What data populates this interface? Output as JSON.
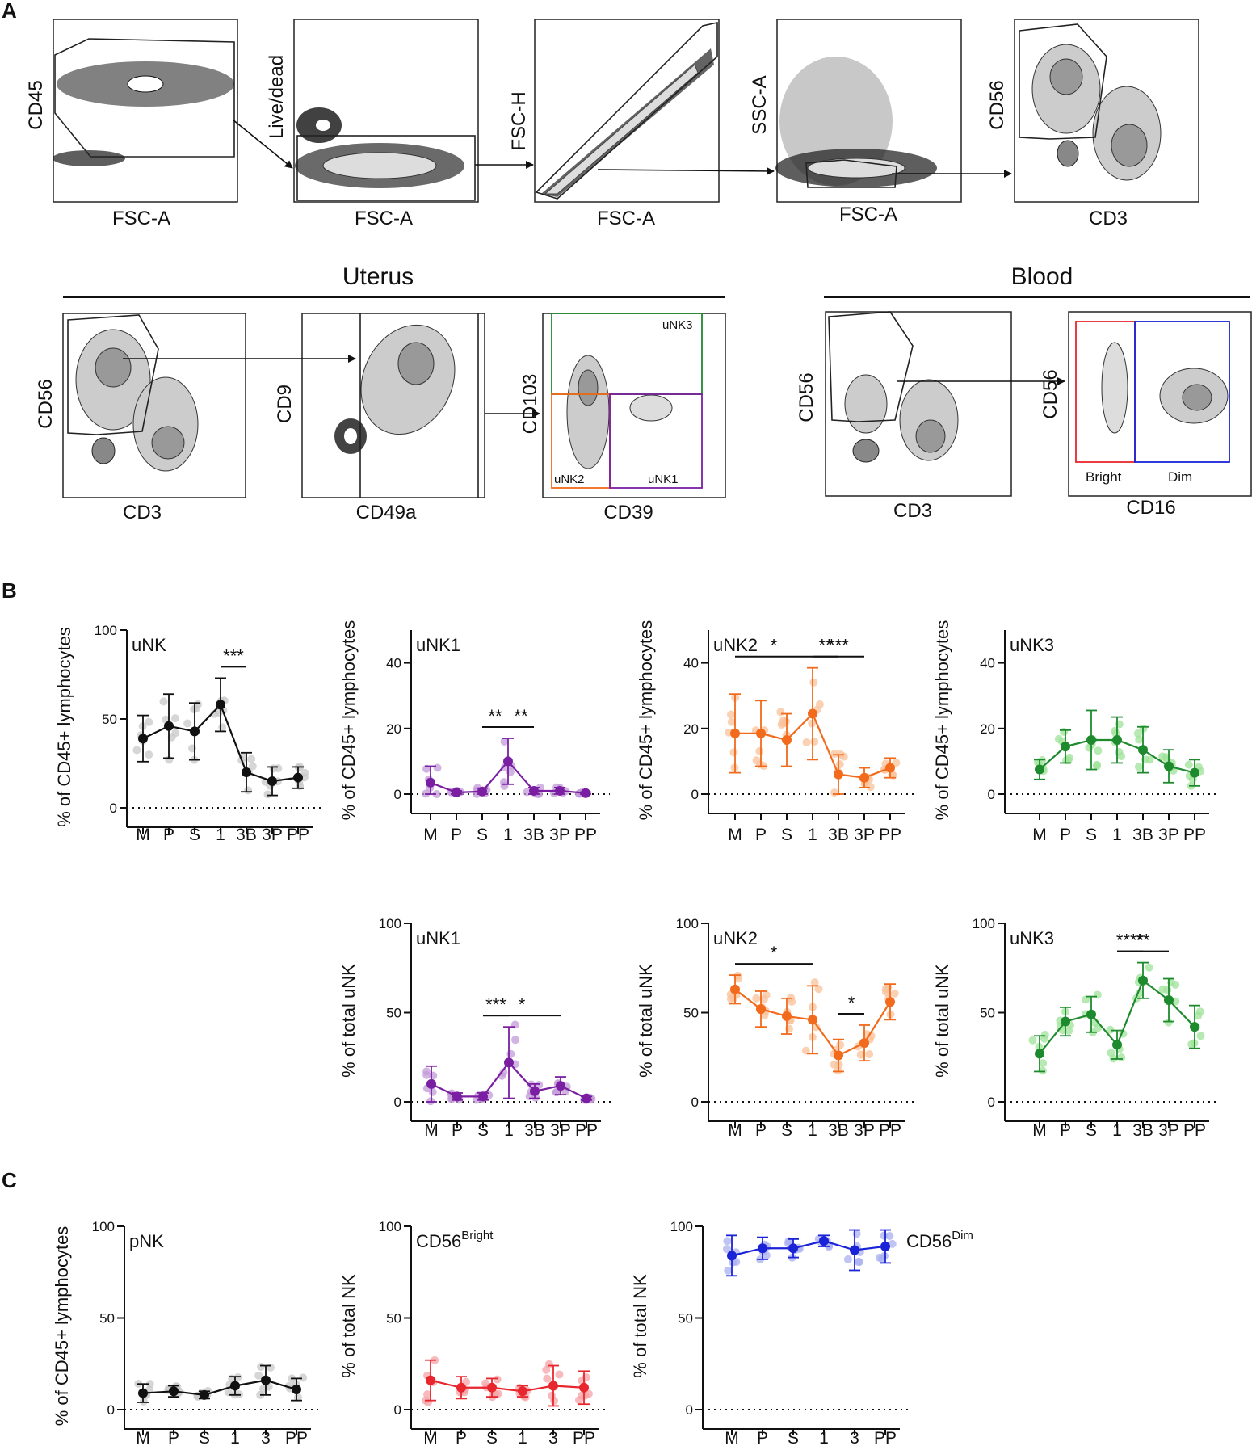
{
  "panel_letters": {
    "a": "A",
    "b": "B",
    "c": "C"
  },
  "gating": {
    "row1": [
      {
        "y": "CD45",
        "x": "FSC-A"
      },
      {
        "y": "Live/dead",
        "x": "FSC-A"
      },
      {
        "y": "FSC-H",
        "x": "FSC-A"
      },
      {
        "y": "SSC-A",
        "x": "FSC-A"
      },
      {
        "y": "CD56",
        "x": "CD3"
      }
    ],
    "uterus_title": "Uterus",
    "blood_title": "Blood",
    "uterus": [
      {
        "y": "CD56",
        "x": "CD3"
      },
      {
        "y": "CD9",
        "x": "CD49a"
      },
      {
        "y": "CD103",
        "x": "CD39",
        "gates": [
          "uNK3",
          "uNK2",
          "uNK1"
        ]
      }
    ],
    "blood": [
      {
        "y": "CD56",
        "x": "CD3"
      },
      {
        "y": "CD56",
        "x": "CD16",
        "gates": [
          "Bright",
          "Dim"
        ]
      }
    ]
  },
  "chart_data": [
    {
      "id": "b1",
      "type": "line",
      "label": "uNK",
      "ylabel": "% of CD45+ lymphocytes",
      "ylim": [
        0,
        100
      ],
      "yticks": [
        "0",
        "50",
        "100"
      ],
      "color": "#111111",
      "dot_color": "#c8c8c8",
      "categories": [
        "M",
        "P",
        "S",
        "1",
        "3B",
        "3P",
        "PP"
      ],
      "values": [
        39,
        46,
        43,
        58,
        20,
        15,
        17
      ],
      "err": [
        13,
        18,
        16,
        15,
        11,
        8,
        6
      ],
      "sig": [
        {
          "a": 4,
          "b": 5,
          "label": "***"
        }
      ]
    },
    {
      "id": "b2",
      "type": "line",
      "label": "uNK1",
      "ylabel": "% of CD45+ lymphocytes",
      "ylim": [
        0,
        50
      ],
      "yticks": [
        "0",
        "20",
        "40"
      ],
      "color": "#7a1fa2",
      "dot_color": "#c39bd8",
      "categories": [
        "M",
        "P",
        "S",
        "1",
        "3B",
        "3P",
        "PP"
      ],
      "values": [
        3.5,
        0.5,
        0.8,
        10,
        1,
        1,
        0.3
      ],
      "err": [
        5,
        0.5,
        1,
        7,
        1,
        1,
        0.3
      ],
      "sig": [
        {
          "a": 3,
          "b": 4,
          "label": "**"
        },
        {
          "a": 4,
          "b": 5,
          "label": "**"
        }
      ]
    },
    {
      "id": "b3",
      "type": "line",
      "label": "uNK2",
      "ylabel": "% of CD45+ lymphocytes",
      "ylim": [
        0,
        50
      ],
      "yticks": [
        "0",
        "20",
        "40"
      ],
      "color": "#f26a1b",
      "dot_color": "#f9c199",
      "categories": [
        "M",
        "P",
        "S",
        "1",
        "3B",
        "3P",
        "PP"
      ],
      "values": [
        18.5,
        18.5,
        16.5,
        24.5,
        6,
        5,
        8
      ],
      "err": [
        12,
        10,
        8,
        14,
        6,
        3,
        3
      ],
      "sig": [
        {
          "a": 1,
          "b": 4,
          "label": "*"
        },
        {
          "a": 4,
          "b": 6,
          "label": "***"
        },
        {
          "a": 4,
          "b": 5,
          "label": "**"
        }
      ]
    },
    {
      "id": "b4",
      "type": "line",
      "label": "uNK3",
      "ylabel": "% of CD45+ lymphocytes",
      "ylim": [
        0,
        50
      ],
      "yticks": [
        "0",
        "20",
        "40"
      ],
      "color": "#1e8a2e",
      "dot_color": "#9fe39a",
      "categories": [
        "M",
        "P",
        "S",
        "1",
        "3B",
        "3P",
        "PP"
      ],
      "values": [
        7.5,
        14.5,
        16.5,
        16.5,
        13.5,
        8.5,
        6.5
      ],
      "err": [
        3,
        5,
        9,
        7,
        7,
        5,
        4
      ],
      "sig": []
    },
    {
      "id": "b5",
      "type": "line",
      "label": "uNK1",
      "ylabel": "% of total uNK",
      "ylim": [
        0,
        100
      ],
      "yticks": [
        "0",
        "50",
        "100"
      ],
      "color": "#7a1fa2",
      "dot_color": "#c39bd8",
      "categories": [
        "M",
        "P",
        "S",
        "1",
        "3B",
        "3P",
        "PP"
      ],
      "values": [
        10,
        3,
        3,
        22,
        6,
        9,
        2
      ],
      "err": [
        10,
        2,
        2,
        20,
        4,
        5,
        1
      ],
      "sig": [
        {
          "a": 3,
          "b": 6,
          "label": "*"
        },
        {
          "a": 3,
          "b": 4,
          "label": "***"
        }
      ]
    },
    {
      "id": "b6",
      "type": "line",
      "label": "uNK2",
      "ylabel": "% of total uNK",
      "ylim": [
        0,
        100
      ],
      "yticks": [
        "0",
        "50",
        "100"
      ],
      "color": "#f26a1b",
      "dot_color": "#f9c199",
      "categories": [
        "M",
        "P",
        "S",
        "1",
        "3B",
        "3P",
        "PP"
      ],
      "values": [
        63,
        52,
        48,
        46,
        26,
        33,
        56
      ],
      "err": [
        8,
        10,
        10,
        19,
        9,
        10,
        10
      ],
      "sig": [
        {
          "a": 1,
          "b": 4,
          "label": "*"
        },
        {
          "a": 5,
          "b": 6,
          "label": "*"
        }
      ]
    },
    {
      "id": "b7",
      "type": "line",
      "label": "uNK3",
      "ylabel": "% of total uNK",
      "ylim": [
        0,
        100
      ],
      "yticks": [
        "0",
        "50",
        "100"
      ],
      "color": "#1e8a2e",
      "dot_color": "#9fe39a",
      "categories": [
        "M",
        "P",
        "S",
        "1",
        "3B",
        "3P",
        "PP"
      ],
      "values": [
        27,
        45,
        49,
        32,
        68,
        57,
        42
      ],
      "err": [
        10,
        8,
        10,
        8,
        10,
        12,
        12
      ],
      "sig": [
        {
          "a": 4,
          "b": 6,
          "label": "**"
        },
        {
          "a": 4,
          "b": 5,
          "label": "****"
        }
      ]
    },
    {
      "id": "c1",
      "type": "line",
      "label": "pNK",
      "ylabel": "% of CD45+ lymphocytes",
      "ylim": [
        0,
        100
      ],
      "yticks": [
        "0",
        "50",
        "100"
      ],
      "color": "#111111",
      "dot_color": "#c8c8c8",
      "categories": [
        "M",
        "P",
        "S",
        "1",
        "3",
        "PP"
      ],
      "values": [
        9,
        10,
        8,
        13,
        16,
        11
      ],
      "err": [
        5,
        3,
        2,
        5,
        8,
        6
      ],
      "sig": []
    },
    {
      "id": "c2",
      "type": "line",
      "label": "CD56",
      "label_sup": "Bright",
      "ylabel": "% of total NK",
      "ylim": [
        0,
        100
      ],
      "yticks": [
        "0",
        "50",
        "100"
      ],
      "color": "#e8262e",
      "dot_color": "#f6a3a7",
      "categories": [
        "M",
        "P",
        "S",
        "1",
        "3",
        "PP"
      ],
      "values": [
        16,
        12,
        12,
        10,
        13,
        12
      ],
      "err": [
        11,
        6,
        5,
        3,
        11,
        9
      ],
      "sig": []
    },
    {
      "id": "c3",
      "type": "line",
      "label": "CD56",
      "label_sup": "Dim",
      "ylabel": "% of total NK",
      "ylim": [
        0,
        100
      ],
      "yticks": [
        "0",
        "50",
        "100"
      ],
      "color": "#1b23d6",
      "dot_color": "#a9b0f0",
      "categories": [
        "M",
        "P",
        "S",
        "1",
        "3",
        "PP"
      ],
      "values": [
        84,
        88,
        88,
        92,
        87,
        89
      ],
      "err": [
        11,
        6,
        5,
        3,
        11,
        9
      ],
      "sig": []
    }
  ]
}
